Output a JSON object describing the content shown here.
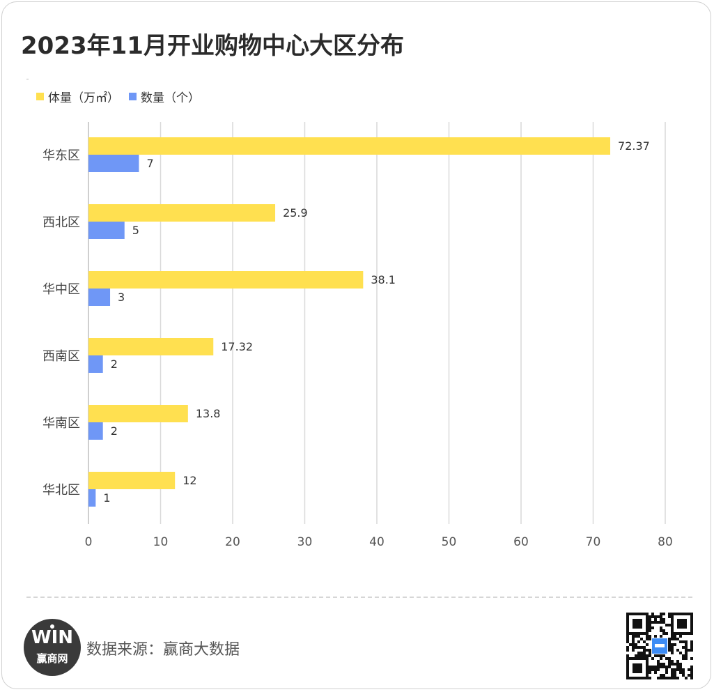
{
  "title": "2023年11月开业购物中心大区分布",
  "source": "数据来源：赢商大数据",
  "logo": {
    "mark": "WIN",
    "name": "赢商网"
  },
  "qr_icon": "qr-code-icon",
  "colors": {
    "volume": "#FFE050",
    "count": "#6F97F6",
    "grid": "#D9D9D9"
  },
  "chart_data": {
    "type": "bar",
    "orientation": "horizontal",
    "categories": [
      "华东区",
      "西北区",
      "华中区",
      "西南区",
      "华南区",
      "华北区"
    ],
    "series": [
      {
        "name": "体量（万㎡）",
        "values": [
          72.37,
          25.9,
          38.1,
          17.32,
          13.8,
          12
        ],
        "labels": [
          "72.37",
          "25.9",
          "38.1",
          "17.32",
          "13.8",
          "12"
        ]
      },
      {
        "name": "数量（个）",
        "values": [
          7,
          5,
          3,
          2,
          2,
          1
        ],
        "labels": [
          "7",
          "5",
          "3",
          "2",
          "2",
          "1"
        ]
      }
    ],
    "xlim": [
      0,
      80
    ],
    "xticks": [
      "0",
      "10",
      "20",
      "30",
      "40",
      "50",
      "60",
      "70",
      "80"
    ],
    "grid": true,
    "legend": "top-left"
  }
}
